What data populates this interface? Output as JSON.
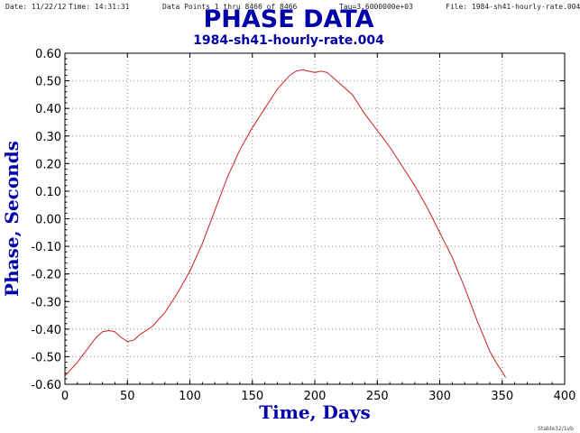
{
  "header": {
    "date": "Date: 11/22/12",
    "time": "Time: 14:31:31",
    "points": "Data Points 1 thru 8466 of 8466",
    "tau": "Tau=3.6000000e+03",
    "file": "File: 1984-sh41-hourly-rate.004"
  },
  "footer": "Stable32/1vb",
  "colors": {
    "title": "#0000a8",
    "line": "#cc2020",
    "grid": "#888888",
    "axis": "#000000"
  },
  "chart_data": {
    "type": "line",
    "title": "PHASE DATA",
    "subtitle": "1984-sh41-hourly-rate.004",
    "xlabel": "Time, Days",
    "ylabel": "Phase, Seconds",
    "xlim": [
      0,
      400
    ],
    "ylim": [
      -0.6,
      0.6
    ],
    "xticks": [
      "0",
      "50",
      "100",
      "150",
      "200",
      "250",
      "300",
      "350",
      "400"
    ],
    "yticks": [
      "-0.60",
      "-0.50",
      "-0.40",
      "-0.30",
      "-0.20",
      "-0.10",
      "0.00",
      "0.10",
      "0.20",
      "0.30",
      "0.40",
      "0.50",
      "0.60"
    ],
    "grid": true,
    "series": [
      {
        "x": [
          0,
          10,
          20,
          25,
          30,
          35,
          40,
          45,
          50,
          55,
          60,
          70,
          80,
          90,
          100,
          110,
          120,
          130,
          140,
          150,
          160,
          170,
          180,
          185,
          190,
          195,
          200,
          205,
          210,
          215,
          220,
          230,
          240,
          250,
          260,
          270,
          280,
          290,
          300,
          310,
          320,
          330,
          340,
          345,
          352.75
        ],
        "y": [
          -0.57,
          -0.52,
          -0.46,
          -0.43,
          -0.41,
          -0.405,
          -0.41,
          -0.43,
          -0.445,
          -0.44,
          -0.42,
          -0.39,
          -0.34,
          -0.27,
          -0.19,
          -0.09,
          0.03,
          0.15,
          0.25,
          0.33,
          0.4,
          0.47,
          0.52,
          0.535,
          0.54,
          0.535,
          0.53,
          0.535,
          0.53,
          0.51,
          0.49,
          0.45,
          0.38,
          0.32,
          0.26,
          0.19,
          0.12,
          0.04,
          -0.05,
          -0.14,
          -0.25,
          -0.37,
          -0.48,
          -0.52,
          -0.575
        ]
      }
    ]
  }
}
